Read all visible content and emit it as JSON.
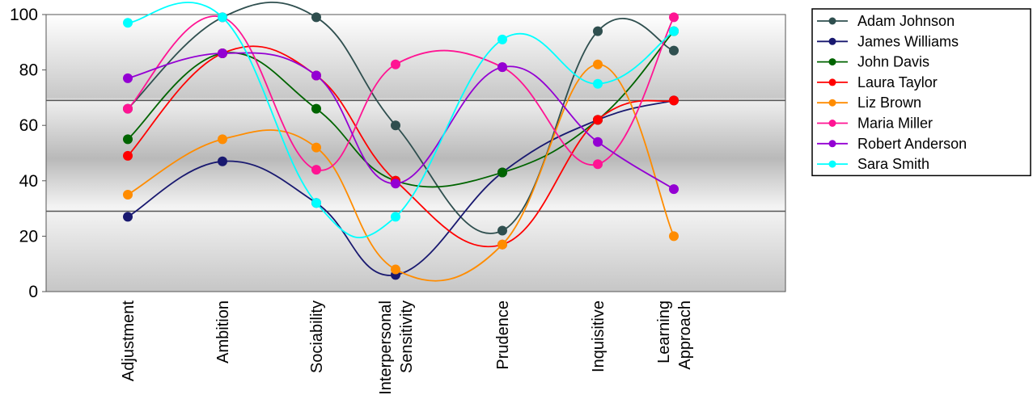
{
  "chart_data": {
    "type": "line",
    "title": "",
    "xlabel": "",
    "ylabel": "",
    "ylim": [
      0,
      100
    ],
    "yticks": [
      0,
      20,
      40,
      60,
      80,
      100
    ],
    "ref_lines": [
      29,
      69
    ],
    "background": "gradient-grey-bands",
    "legend_position": "right",
    "categories": [
      [
        "Adjustment"
      ],
      [
        "Ambition"
      ],
      [
        "Sociability"
      ],
      [
        "Interpersonal",
        "Sensitivity"
      ],
      [
        "Prudence"
      ],
      [
        "Inquisitive"
      ],
      [
        "Learning",
        "Approach"
      ]
    ],
    "series": [
      {
        "name": "Adam Johnson",
        "color": "#2f4f4f",
        "values": [
          66,
          99,
          99,
          60,
          22,
          94,
          87
        ]
      },
      {
        "name": "James Williams",
        "color": "#191970",
        "values": [
          27,
          47,
          32,
          6,
          43,
          62,
          69
        ]
      },
      {
        "name": "John Davis",
        "color": "#006400",
        "values": [
          55,
          86,
          66,
          40,
          43,
          62,
          94
        ]
      },
      {
        "name": "Laura Taylor",
        "color": "#ff0000",
        "values": [
          49,
          86,
          78,
          40,
          17,
          62,
          69
        ]
      },
      {
        "name": "Liz Brown",
        "color": "#ff8c00",
        "values": [
          35,
          55,
          52,
          8,
          17,
          82,
          20
        ]
      },
      {
        "name": "Maria Miller",
        "color": "#ff1493",
        "values": [
          66,
          99,
          44,
          82,
          81,
          46,
          99
        ]
      },
      {
        "name": "Robert Anderson",
        "color": "#9400d3",
        "values": [
          77,
          86,
          78,
          39,
          81,
          54,
          37
        ]
      },
      {
        "name": "Sara Smith",
        "color": "#00ffff",
        "values": [
          97,
          99,
          32,
          27,
          91,
          75,
          94
        ]
      }
    ]
  }
}
